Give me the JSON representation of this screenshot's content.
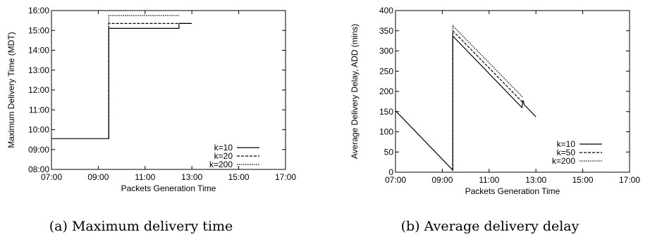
{
  "chart_data": [
    {
      "type": "line",
      "caption": "(a) Maximum delivery time",
      "xlabel": "Packets Generation Time",
      "ylabel": "Maximum Delivery Time (MDT)",
      "x_ticks": [
        "07:00",
        "09:00",
        "11:00",
        "13:00",
        "15:00",
        "17:00"
      ],
      "y_ticks": [
        "08:00",
        "09:00",
        "10:00",
        "11:00",
        "12:00",
        "13:00",
        "14:00",
        "15:00",
        "16:00"
      ],
      "xlim_hours": [
        7,
        17
      ],
      "ylim_hours": [
        8,
        16
      ],
      "grid": false,
      "legend_position": "bottom-right",
      "series": [
        {
          "name": "k=10",
          "dash": "solid",
          "x": [
            7,
            9.45,
            9.45,
            12.45,
            12.45,
            13.0
          ],
          "y": [
            9.55,
            9.55,
            15.1,
            15.1,
            15.35,
            15.35
          ]
        },
        {
          "name": "k=20",
          "dash": "dashed",
          "x": [
            9.45,
            9.45,
            13.0
          ],
          "y": [
            9.55,
            15.35,
            15.35
          ]
        },
        {
          "name": "k=200",
          "dash": "dotted",
          "x": [
            9.45,
            9.45,
            12.45
          ],
          "y": [
            9.55,
            15.75,
            15.75
          ]
        }
      ]
    },
    {
      "type": "line",
      "caption": "(b) Average delivery delay",
      "xlabel": "Packets Generation Time",
      "ylabel": "Average Delivery Delay, ADD (mins)",
      "x_ticks": [
        "07:00",
        "09:00",
        "11:00",
        "13:00",
        "15:00",
        "17:00"
      ],
      "y_ticks": [
        "0",
        "50",
        "100",
        "150",
        "200",
        "250",
        "300",
        "350",
        "400"
      ],
      "xlim_hours": [
        7,
        17
      ],
      "ylim": [
        0,
        400
      ],
      "grid": false,
      "legend_position": "bottom-right",
      "series": [
        {
          "name": "k=10",
          "dash": "solid",
          "x": [
            7,
            9.45,
            9.45,
            12.4,
            12.45,
            12.5,
            13.0
          ],
          "y": [
            152,
            5,
            337,
            160,
            178,
            167,
            137
          ]
        },
        {
          "name": "k=50",
          "dash": "dashed",
          "x": [
            9.45,
            9.45,
            12.45
          ],
          "y": [
            5,
            350,
            172
          ]
        },
        {
          "name": "k=200",
          "dash": "dotted",
          "x": [
            9.45,
            9.45,
            12.45
          ],
          "y": [
            5,
            362,
            185
          ]
        }
      ]
    }
  ]
}
